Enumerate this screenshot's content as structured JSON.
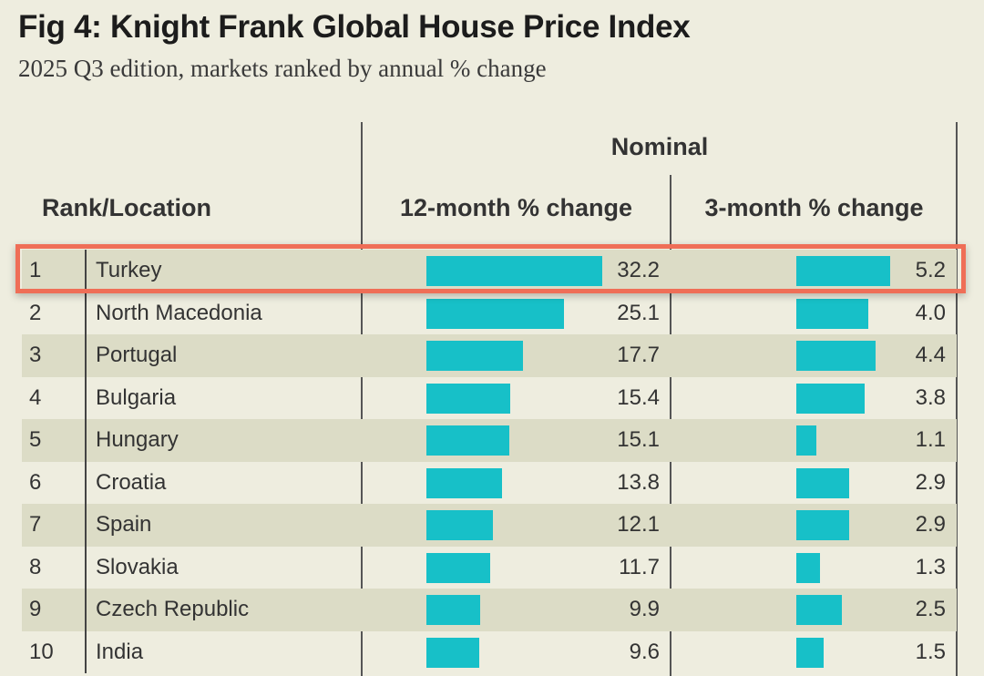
{
  "chart_data": {
    "type": "table",
    "title": "Fig 4: Knight Frank Global House Price Index",
    "subtitle": "2025 Q3 edition, markets ranked by annual % change",
    "group_header": "Nominal",
    "columns": [
      "Rank/Location",
      "12-month % change",
      "3-month % change"
    ],
    "rows": [
      {
        "rank": "1",
        "location": "Turkey",
        "change_12m": 32.2,
        "change_3m": 5.2
      },
      {
        "rank": "2",
        "location": "North Macedonia",
        "change_12m": 25.1,
        "change_3m": 4.0
      },
      {
        "rank": "3",
        "location": "Portugal",
        "change_12m": 17.7,
        "change_3m": 4.4
      },
      {
        "rank": "4",
        "location": "Bulgaria",
        "change_12m": 15.4,
        "change_3m": 3.8
      },
      {
        "rank": "5",
        "location": "Hungary",
        "change_12m": 15.1,
        "change_3m": 1.1
      },
      {
        "rank": "6",
        "location": "Croatia",
        "change_12m": 13.8,
        "change_3m": 2.9
      },
      {
        "rank": "7",
        "location": "Spain",
        "change_12m": 12.1,
        "change_3m": 2.9
      },
      {
        "rank": "8",
        "location": "Slovakia",
        "change_12m": 11.7,
        "change_3m": 1.3
      },
      {
        "rank": "9",
        "location": "Czech Republic",
        "change_12m": 9.9,
        "change_3m": 2.5
      },
      {
        "rank": "10",
        "location": "India",
        "change_12m": 9.6,
        "change_3m": 1.5
      }
    ],
    "highlighted_row": "1",
    "colors": {
      "bar": "#17c0c8",
      "highlight": "#ef6e57",
      "row_shade": "#dcdcc6",
      "background": "#eeeddf"
    }
  }
}
